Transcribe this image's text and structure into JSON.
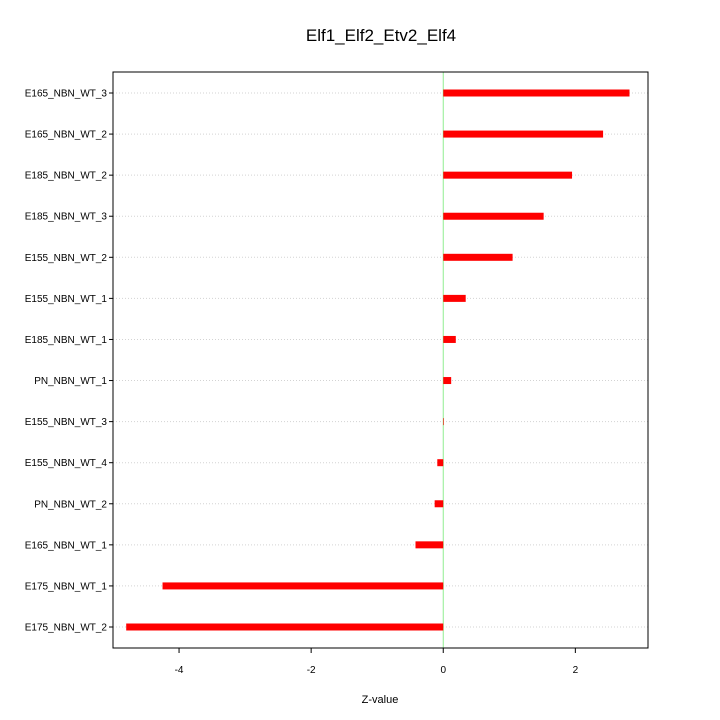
{
  "chart_data": {
    "type": "bar",
    "orientation": "horizontal",
    "title": "Elf1_Elf2_Etv2_Elf4",
    "xlabel": "Z-value",
    "ylabel": "",
    "xlim": [
      -5.0,
      3.1
    ],
    "xticks": [
      -4,
      -2,
      0,
      2
    ],
    "xtick_labels": [
      "-4",
      "-2",
      "0",
      "2"
    ],
    "categories": [
      "E165_NBN_WT_3",
      "E165_NBN_WT_2",
      "E185_NBN_WT_2",
      "E185_NBN_WT_3",
      "E155_NBN_WT_2",
      "E155_NBN_WT_1",
      "E185_NBN_WT_1",
      "PN_NBN_WT_1",
      "E155_NBN_WT_3",
      "E155_NBN_WT_4",
      "PN_NBN_WT_2",
      "E165_NBN_WT_1",
      "E175_NBN_WT_1",
      "E175_NBN_WT_2"
    ],
    "values": [
      2.82,
      2.42,
      1.95,
      1.52,
      1.05,
      0.34,
      0.19,
      0.12,
      0.0,
      -0.09,
      -0.13,
      -0.42,
      -4.25,
      -4.8
    ],
    "grid": true,
    "bar_color": "#ff0000",
    "zero_line_color": "#90ee90",
    "grid_color": "#d3d3d3"
  }
}
